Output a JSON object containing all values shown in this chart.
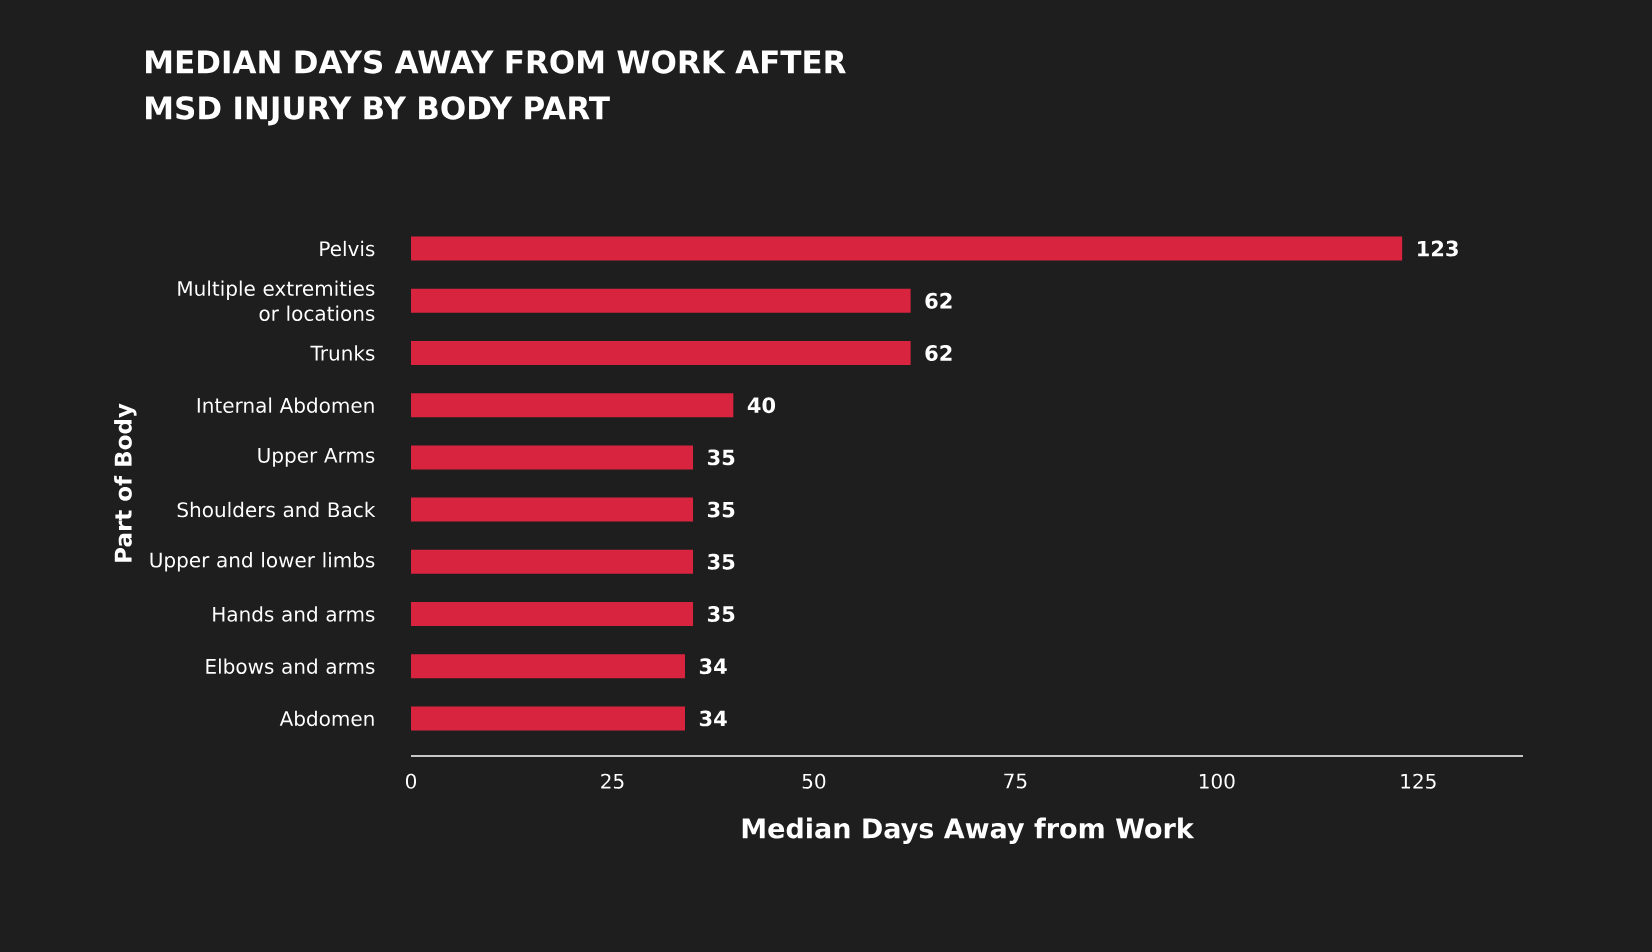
{
  "chart_data": {
    "type": "bar",
    "orientation": "horizontal",
    "title": "MEDIAN DAYS AWAY FROM WORK AFTER MSD INJURY BY BODY PART",
    "xlabel": "Median Days Away from Work",
    "ylabel": "Part of Body",
    "categories": [
      "Pelvis",
      "Multiple extremities or locations",
      "Trunks",
      "Internal Abdomen",
      "Upper Arms",
      "Shoulders and Back",
      "Upper and lower limbs",
      "Hands and arms",
      "Elbows and arms",
      "Abdomen"
    ],
    "values": [
      123,
      62,
      62,
      40,
      35,
      35,
      35,
      35,
      34,
      34
    ],
    "color": "#d92440",
    "xlim": [
      0,
      138
    ],
    "xticks": [
      0,
      25,
      50,
      75,
      100,
      125
    ],
    "data_labels": true
  }
}
